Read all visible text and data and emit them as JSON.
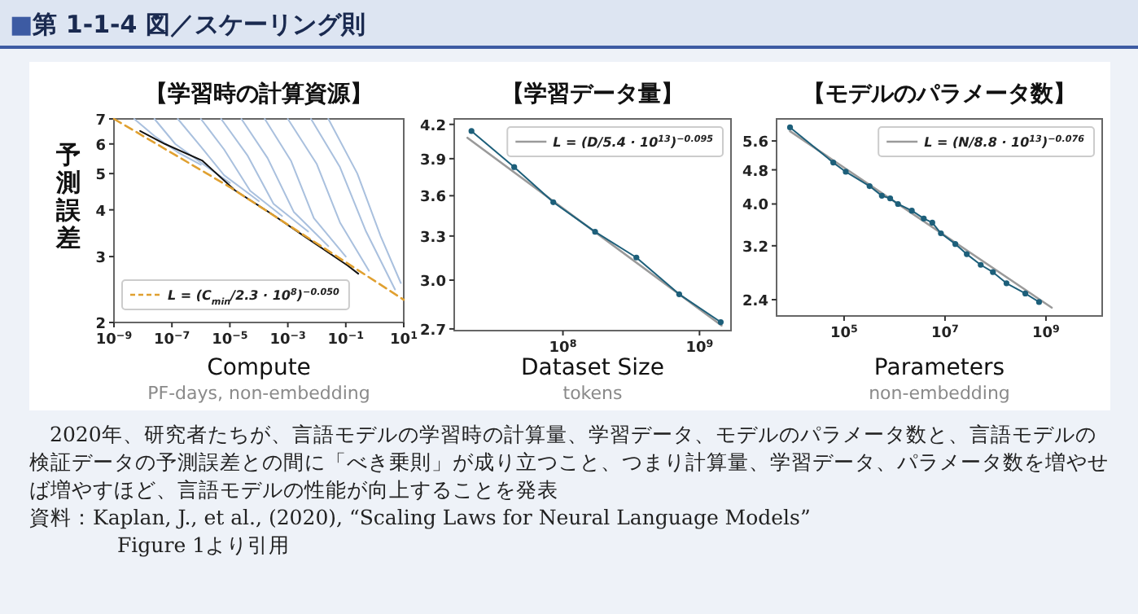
{
  "chart_data": [
    {
      "type": "line",
      "title": "【学習時の計算資源】",
      "xlabel": "Compute",
      "ylabel": "予測誤差",
      "log": "xy",
      "grid": false,
      "legend": "bottom left",
      "annotations": [
        "PF-days, non-embedding",
        "■第 1-1-4 図／スケーリング則"
      ],
      "xlim": [
        1e-09,
        10
      ],
      "ylim": [
        2,
        7
      ],
      "xticks": [
        {
          "value": 1e-09,
          "label": "10$^{−9}$"
        },
        {
          "value": 1e-07,
          "label": "10$^{−7}$"
        },
        {
          "value": 1e-05,
          "label": "10$^{−5}$"
        },
        {
          "value": 0.001,
          "label": "10$^{−3}$"
        },
        {
          "value": 0.1,
          "label": "10$^{−1}$"
        },
        {
          "value": 10,
          "label": "10$^{1}$"
        }
      ],
      "yticks": [
        2,
        3,
        4,
        5,
        6,
        7
      ],
      "series": [
        {
          "color": "#a9c0de",
          "x": [
            5e-09,
            2.5e-08,
            1.6e-07,
            1e-06
          ],
          "values": [
            7.0,
            6.3,
            5.7,
            5.28
          ]
        },
        {
          "color": "#a9c0de",
          "x": [
            2.5e-08,
            1.3e-07,
            1e-06,
            1e-05
          ],
          "values": [
            7.0,
            6.0,
            5.35,
            4.72
          ]
        },
        {
          "color": "#a9c0de",
          "x": [
            1.6e-07,
            1e-06,
            6.3e-06,
            0.0001
          ],
          "values": [
            7.0,
            5.9,
            4.95,
            4.22
          ]
        },
        {
          "color": "#a9c0de",
          "x": [
            1e-06,
            6.3e-06,
            5e-05,
            0.00063
          ],
          "values": [
            7.0,
            5.8,
            4.5,
            3.85
          ]
        },
        {
          "color": "#a9c0de",
          "x": [
            5e-06,
            4e-05,
            0.00032,
            0.005
          ],
          "values": [
            7.0,
            5.6,
            4.15,
            3.5
          ]
        },
        {
          "color": "#a9c0de",
          "x": [
            2.5e-05,
            0.0002,
            0.0016,
            0.025
          ],
          "values": [
            7.0,
            5.5,
            3.95,
            3.2
          ]
        },
        {
          "color": "#a9c0de",
          "x": [
            0.00016,
            0.0013,
            0.0079,
            0.1
          ],
          "values": [
            7.0,
            5.4,
            3.8,
            3.0
          ]
        },
        {
          "color": "#a9c0de",
          "x": [
            0.001,
            0.01,
            0.063,
            0.63
          ],
          "values": [
            7.0,
            5.3,
            3.7,
            2.75
          ]
        },
        {
          "color": "#a9c0de",
          "x": [
            0.0063,
            0.063,
            0.5,
            5.0
          ],
          "values": [
            7.0,
            5.2,
            3.5,
            2.45
          ]
        },
        {
          "color": "#a9c0de",
          "x": [
            0.025,
            0.25,
            1.6,
            7.9
          ],
          "values": [
            7.0,
            5.0,
            3.4,
            2.55
          ]
        },
        {
          "color": "#111111",
          "x": [
            8e-09,
            5.7e-08,
            1.1e-06,
            1.5e-05,
            0.00029,
            0.0037,
            0.115,
            0.27
          ],
          "values": [
            6.5,
            6.0,
            5.42,
            4.51,
            3.89,
            3.4,
            2.84,
            2.7
          ]
        },
        {
          "name": "L = (C$_{min}$/2.3 · 10$^{8}$)$^{−0.050}$",
          "color": "#e0a030",
          "line_style": "dashed",
          "x": [
            1e-09,
            1e-05,
            10
          ],
          "values": [
            7.0,
            4.6,
            2.3
          ]
        }
      ]
    },
    {
      "type": "line",
      "title": "【学習データ量】",
      "xlabel": "Dataset Size",
      "log": "xy",
      "grid": false,
      "legend": "top right",
      "annotations": [
        "tokens"
      ],
      "xlim": [
        16000000.0,
        1700000000.0
      ],
      "ylim": [
        2.69,
        4.25
      ],
      "xticks": [
        {
          "value": 100000000.0,
          "label": "10$^{8}$"
        },
        {
          "value": 1000000000.0,
          "label": "10$^{9}$"
        }
      ],
      "yticks": [
        2.7,
        {
          "value": 3,
          "label": "3.0"
        },
        3.3,
        3.6,
        3.9,
        4.2
      ],
      "series": [
        {
          "name": "L = (D/5.4 · 10$^{13}$)$^{−0.095}$",
          "color": "#9a9a9a",
          "x": [
            20000000.0,
            1450000000.0
          ],
          "values": [
            4.08,
            2.72
          ]
        },
        {
          "color": "#1d5f7a",
          "marker": "circle",
          "x": [
            21400000.0,
            44000000.0,
            85000000.0,
            172000000.0,
            345000000.0,
            710000000.0,
            1430000000.0
          ],
          "values": [
            4.14,
            3.83,
            3.55,
            3.33,
            3.15,
            2.91,
            2.74
          ]
        }
      ]
    },
    {
      "type": "line",
      "title": "【モデルのパラメータ数】",
      "xlabel": "Parameters",
      "log": "xy",
      "grid": false,
      "legend": "top right",
      "annotations": [
        "non-embedding",
        "2020年、研究者たちが、言語モデルの学習時の計算量、学習データ、モデルのパラメータ数と、言語モデルの検証データの予測誤差との間に「べき乗則」が成り立つこと、つまり計算量、学習データ、パラメータ数を増やせば増やすほど、言語モデルの性能が向上することを発表",
        "資料：Kaplan, J., et al., (2020), “Scaling Laws for Neural Language Models”",
        "Figure 1より引用"
      ],
      "xlim": [
        4600.0,
        13000000000.0
      ],
      "ylim": [
        2.2,
        6.3
      ],
      "xticks": [
        {
          "value": 100000.0,
          "label": "10$^{5}$"
        },
        {
          "value": 10000000.0,
          "label": "10$^{7}$"
        },
        {
          "value": 1000000000.0,
          "label": "10$^{9}$"
        }
      ],
      "yticks": [
        2.4,
        3.2,
        {
          "value": 4,
          "label": "4.0"
        },
        4.8,
        5.6
      ],
      "series": [
        {
          "name": "L = (N/8.8 · 10$^{13}$)$^{−0.076}$",
          "color": "#9a9a9a",
          "x": [
            8500.0,
            1300000000.0
          ],
          "values": [
            5.9,
            2.3
          ]
        },
        {
          "color": "#1d5f7a",
          "marker": "circle",
          "x": [
            8500.0,
            61000.0,
            108000.0,
            320000.0,
            560000.0,
            820000.0,
            1170000.0,
            2200000.0,
            3800000.0,
            5600000.0,
            8300000.0,
            16000000.0,
            27000000.0,
            51000000.0,
            89000000.0,
            165000000.0,
            390000000.0,
            730000000.0
          ],
          "values": [
            6.02,
            4.99,
            4.75,
            4.4,
            4.18,
            4.12,
            4.0,
            3.86,
            3.7,
            3.62,
            3.42,
            3.23,
            3.06,
            2.89,
            2.78,
            2.62,
            2.48,
            2.37
          ]
        }
      ]
    }
  ]
}
